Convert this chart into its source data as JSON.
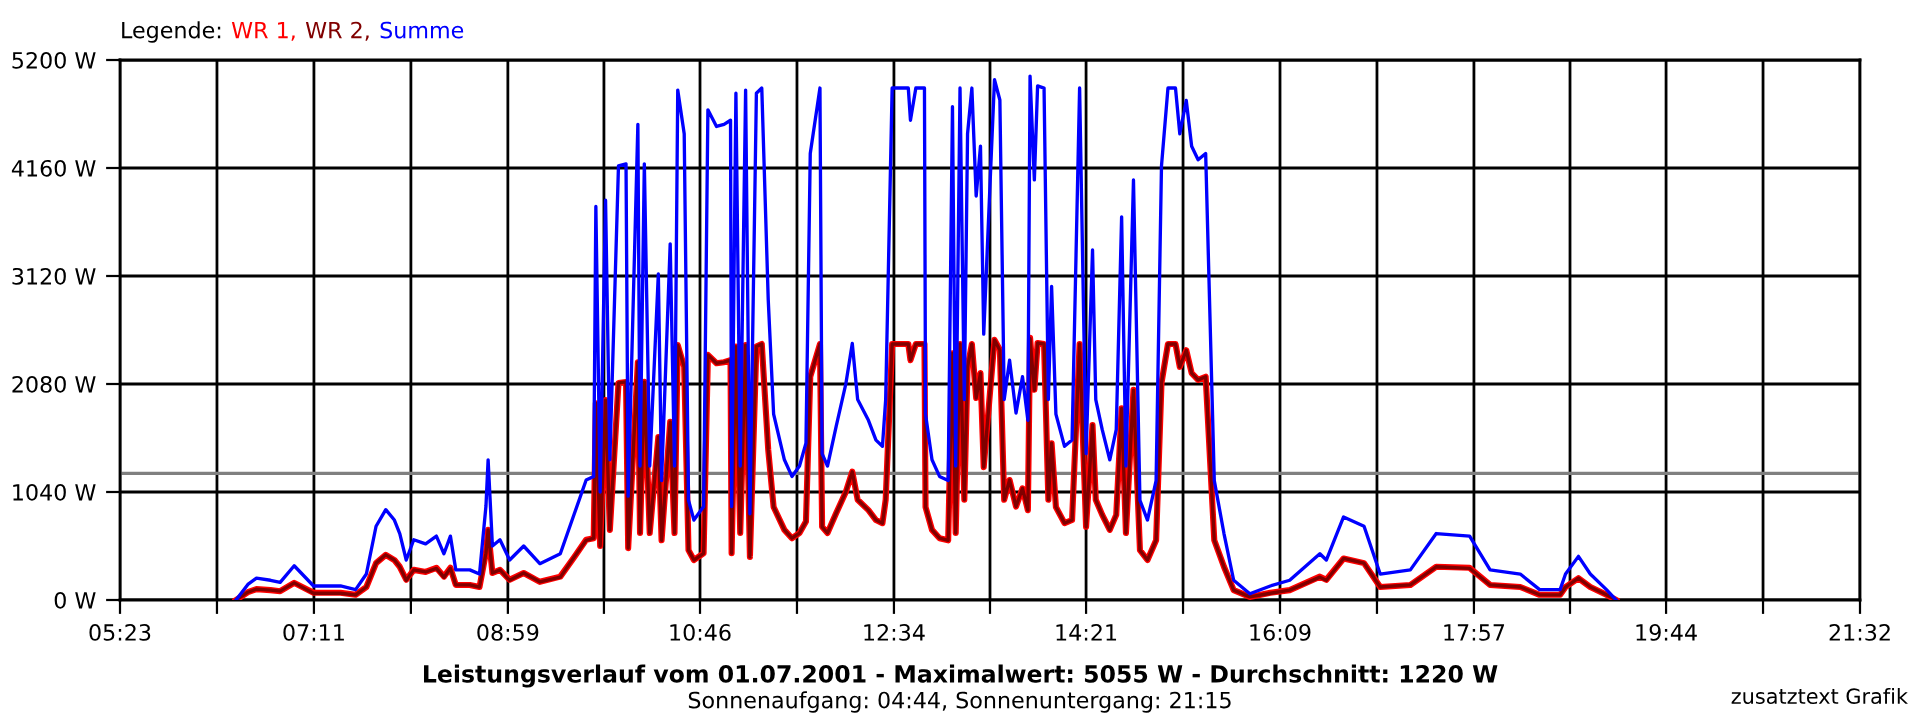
{
  "chart_data": {
    "type": "line",
    "title": "Leistungsverlauf vom 01.07.2001 - Maximalwert: 5055 W - Durchschnitt: 1220 W",
    "subtitle": "Sonnenaufgang: 04:44, Sonnenuntergang: 21:15",
    "legend_title": "Legende:",
    "annotations": [
      "zusatztext Grafik"
    ],
    "x": [
      6.46,
      6.57,
      6.65,
      6.78,
      6.87,
      7.0,
      7.18,
      7.43,
      7.57,
      7.67,
      7.76,
      7.85,
      7.93,
      7.98,
      8.04,
      8.11,
      8.22,
      8.32,
      8.39,
      8.45,
      8.5,
      8.63,
      8.72,
      8.78,
      8.8,
      8.84,
      8.91,
      9.0,
      9.13,
      9.28,
      9.47,
      9.6,
      9.71,
      9.78,
      9.8,
      9.84,
      9.89,
      9.93,
      10.01,
      10.08,
      10.1,
      10.19,
      10.21,
      10.25,
      10.3,
      10.38,
      10.41,
      10.49,
      10.53,
      10.56,
      10.62,
      10.66,
      10.71,
      10.8,
      10.84,
      10.92,
      10.99,
      11.05,
      11.06,
      11.1,
      11.14,
      11.19,
      11.23,
      11.29,
      11.34,
      11.4,
      11.45,
      11.55,
      11.62,
      11.69,
      11.75,
      11.79,
      11.88,
      11.9,
      11.95,
      12.03,
      12.12,
      12.18,
      12.23,
      12.33,
      12.4,
      12.46,
      12.49,
      12.55,
      12.7,
      12.72,
      12.77,
      12.85,
      12.86,
      12.92,
      12.99,
      13.07,
      13.11,
      13.14,
      13.18,
      13.22,
      13.25,
      13.29,
      13.33,
      13.37,
      13.4,
      13.46,
      13.5,
      13.55,
      13.59,
      13.64,
      13.7,
      13.76,
      13.81,
      13.83,
      13.87,
      13.9,
      13.96,
      14.0,
      14.03,
      14.07,
      14.15,
      14.22,
      14.29,
      14.35,
      14.41,
      14.44,
      14.5,
      14.57,
      14.63,
      14.68,
      14.72,
      14.79,
      14.85,
      14.92,
      15.0,
      15.05,
      15.11,
      15.18,
      15.22,
      15.28,
      15.33,
      15.39,
      15.46,
      15.54,
      15.63,
      15.72,
      15.87,
      16.06,
      16.24,
      16.52,
      16.58,
      16.74,
      16.93,
      17.08,
      17.36,
      17.6,
      17.91,
      18.1,
      18.38,
      18.56,
      18.75,
      18.8,
      18.92,
      19.03,
      19.18,
      19.27
    ],
    "series": [
      {
        "name": "WR 1,",
        "color": "#ff0000",
        "values": [
          0,
          75,
          105,
          95,
          85,
          165,
          70,
          70,
          50,
          125,
          355,
          435,
          385,
          320,
          195,
          290,
          270,
          310,
          225,
          310,
          145,
          145,
          125,
          455,
          675,
          260,
          290,
          195,
          260,
          175,
          225,
          415,
          580,
          595,
          1895,
          520,
          1925,
          675,
          2090,
          2100,
          500,
          2290,
          645,
          2100,
          645,
          1570,
          575,
          1715,
          645,
          2455,
          2245,
          480,
          385,
          450,
          2360,
          2280,
          2290,
          2310,
          450,
          2440,
          645,
          2455,
          415,
          2440,
          2465,
          1445,
          895,
          675,
          595,
          645,
          755,
          2150,
          2465,
          705,
          645,
          835,
          1040,
          1235,
          965,
          865,
          770,
          740,
          965,
          2465,
          2465,
          2310,
          2465,
          2465,
          895,
          675,
          595,
          575,
          2375,
          645,
          2465,
          965,
          2245,
          2465,
          1945,
          2185,
          1280,
          2020,
          2505,
          2410,
          965,
          1155,
          900,
          1075,
          865,
          2525,
          2025,
          2475,
          2465,
          965,
          1510,
          895,
          740,
          770,
          2465,
          705,
          1685,
          965,
          820,
          675,
          820,
          1845,
          645,
          2025,
          480,
          385,
          575,
          2090,
          2465,
          2465,
          2245,
          2405,
          2185,
          2120,
          2150,
          575,
          320,
          95,
          30,
          70,
          95,
          225,
          195,
          400,
          355,
          125,
          145,
          320,
          310,
          145,
          125,
          50,
          50,
          125,
          210,
          125,
          50,
          0
        ]
      },
      {
        "name": "WR 2,",
        "color": "#800000",
        "values": [
          0,
          75,
          105,
          95,
          85,
          165,
          65,
          65,
          50,
          125,
          355,
          435,
          385,
          320,
          190,
          290,
          270,
          305,
          220,
          305,
          145,
          145,
          125,
          450,
          675,
          260,
          290,
          190,
          260,
          175,
          220,
          415,
          575,
          595,
          1895,
          520,
          1925,
          675,
          2090,
          2100,
          500,
          2290,
          645,
          2100,
          645,
          1570,
          575,
          1715,
          645,
          2455,
          2245,
          480,
          385,
          450,
          2360,
          2280,
          2290,
          2310,
          450,
          2440,
          645,
          2455,
          415,
          2440,
          2465,
          1445,
          895,
          675,
          595,
          645,
          755,
          2150,
          2465,
          705,
          645,
          835,
          1040,
          1235,
          965,
          865,
          770,
          740,
          965,
          2465,
          2465,
          2310,
          2465,
          2465,
          895,
          675,
          595,
          575,
          2375,
          645,
          2465,
          965,
          2245,
          2465,
          1945,
          2185,
          1280,
          2020,
          2505,
          2405,
          965,
          1155,
          900,
          1075,
          865,
          2520,
          2020,
          2475,
          2465,
          965,
          1510,
          895,
          740,
          770,
          2465,
          705,
          1685,
          965,
          820,
          675,
          820,
          1845,
          645,
          2020,
          480,
          385,
          575,
          2090,
          2465,
          2465,
          2245,
          2405,
          2185,
          2120,
          2150,
          575,
          320,
          95,
          30,
          65,
          95,
          220,
          190,
          400,
          355,
          125,
          145,
          320,
          305,
          145,
          125,
          50,
          50,
          125,
          210,
          125,
          50,
          0
        ]
      },
      {
        "name": "Summe",
        "color": "#0000ff",
        "values": [
          0,
          150,
          210,
          190,
          170,
          330,
          135,
          135,
          100,
          250,
          710,
          870,
          770,
          640,
          385,
          580,
          540,
          615,
          445,
          615,
          290,
          290,
          250,
          905,
          1350,
          520,
          580,
          385,
          520,
          350,
          445,
          830,
          1155,
          1190,
          3790,
          1040,
          3850,
          1350,
          4180,
          4200,
          1000,
          4580,
          1290,
          4200,
          1290,
          3140,
          1150,
          3430,
          1290,
          4910,
          4490,
          960,
          770,
          900,
          4720,
          4560,
          4580,
          4620,
          900,
          4880,
          1290,
          4910,
          830,
          4880,
          4930,
          2890,
          1790,
          1350,
          1190,
          1290,
          1510,
          4300,
          4930,
          1410,
          1290,
          1670,
          2080,
          2470,
          1930,
          1730,
          1540,
          1480,
          1930,
          4930,
          4930,
          4620,
          4930,
          4930,
          1790,
          1350,
          1190,
          1150,
          4750,
          1290,
          4930,
          1930,
          4490,
          4930,
          3890,
          4370,
          2560,
          4040,
          5010,
          4815,
          1930,
          2310,
          1800,
          2150,
          1730,
          5045,
          4045,
          4950,
          4930,
          1930,
          3020,
          1790,
          1480,
          1540,
          4930,
          1410,
          3370,
          1930,
          1640,
          1350,
          1640,
          3690,
          1290,
          4045,
          960,
          770,
          1150,
          4180,
          4930,
          4930,
          4490,
          4810,
          4370,
          4240,
          4300,
          1150,
          640,
          190,
          60,
          135,
          190,
          445,
          385,
          800,
          710,
          250,
          290,
          640,
          615,
          290,
          250,
          100,
          100,
          250,
          420,
          250,
          100,
          0
        ]
      }
    ],
    "xlim": [
      5.3833,
      21.5333
    ],
    "xticks": [
      {
        "value": 5.3833,
        "label": "05:23"
      },
      {
        "value": 6.2833,
        "label": null
      },
      {
        "value": 7.1833,
        "label": "07:11"
      },
      {
        "value": 8.0833,
        "label": null
      },
      {
        "value": 8.9833,
        "label": "08:59"
      },
      {
        "value": 9.875,
        "label": null
      },
      {
        "value": 10.7667,
        "label": "10:46"
      },
      {
        "value": 11.6667,
        "label": null
      },
      {
        "value": 12.5667,
        "label": "12:34"
      },
      {
        "value": 13.4583,
        "label": null
      },
      {
        "value": 14.35,
        "label": "14:21"
      },
      {
        "value": 15.25,
        "label": null
      },
      {
        "value": 16.15,
        "label": "16:09"
      },
      {
        "value": 17.05,
        "label": null
      },
      {
        "value": 17.95,
        "label": "17:57"
      },
      {
        "value": 18.8417,
        "label": null
      },
      {
        "value": 19.7333,
        "label": "19:44"
      },
      {
        "value": 20.6333,
        "label": null
      },
      {
        "value": 21.5333,
        "label": "21:32"
      }
    ],
    "ylim": [
      0,
      5200
    ],
    "yticks": [
      {
        "value": 0,
        "label": "0 W"
      },
      {
        "value": 1040,
        "label": "1040 W"
      },
      {
        "value": 2080,
        "label": "2080 W"
      },
      {
        "value": 3120,
        "label": "3120 W"
      },
      {
        "value": 4160,
        "label": "4160 W"
      },
      {
        "value": 5200,
        "label": "5200 W"
      }
    ],
    "ref_lines": [
      {
        "axis": "y",
        "value": 1220,
        "color": "#808080"
      }
    ],
    "grid": true,
    "legend": "top left",
    "line_style": "solid",
    "marker": "none"
  }
}
